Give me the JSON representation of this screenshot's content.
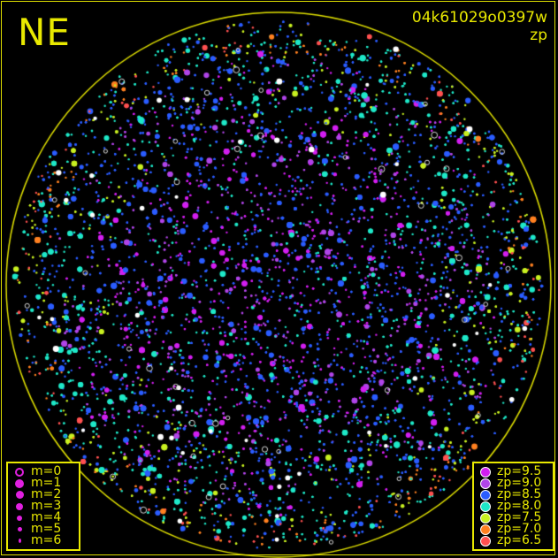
{
  "chart_data": {
    "type": "scatter",
    "title": "04k61029o0397w",
    "subtitle": "zp",
    "corner_label": "NE",
    "marker_size_legend": [
      "m=0",
      "m=1",
      "m=2",
      "m=3",
      "m=4",
      "m=5",
      "m=6"
    ],
    "color_legend": [
      {
        "label": "zp=9.5",
        "color": "#d21ef0"
      },
      {
        "label": "zp=9.0",
        "color": "#b044e8"
      },
      {
        "label": "zp=8.5",
        "color": "#2a5cff"
      },
      {
        "label": "zp=8.0",
        "color": "#1ee8c8"
      },
      {
        "label": "zp=7.5",
        "color": "#c8f020"
      },
      {
        "label": "zp=7.0",
        "color": "#ff8020"
      },
      {
        "label": "zp=6.5",
        "color": "#ff5050"
      }
    ],
    "horizon_color": "#e0e000",
    "background": "#000000"
  }
}
